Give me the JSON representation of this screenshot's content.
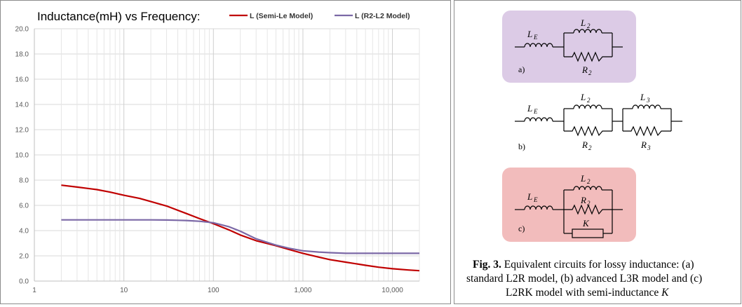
{
  "chart_data": {
    "type": "line",
    "title": "Inductance(mH) vs Frequency:",
    "xscale": "log",
    "xlim": [
      1,
      20000
    ],
    "ylim": [
      0,
      20
    ],
    "xticks": [
      1,
      10,
      100,
      1000,
      10000
    ],
    "xtick_labels": [
      "1",
      "10",
      "100",
      "1,000",
      "10,000"
    ],
    "yticks": [
      0,
      2,
      4,
      6,
      8,
      10,
      12,
      14,
      16,
      18,
      20
    ],
    "ytick_labels": [
      "0.0",
      "2.0",
      "4.0",
      "6.0",
      "8.0",
      "10.0",
      "12.0",
      "14.0",
      "16.0",
      "18.0",
      "20.0"
    ],
    "grid": true,
    "legend_position": "top-right",
    "series": [
      {
        "name": "L (Semi-Le Model)",
        "color": "#c00000",
        "x": [
          2,
          3,
          5,
          7,
          10,
          15,
          20,
          30,
          50,
          70,
          100,
          150,
          200,
          300,
          500,
          700,
          1000,
          1500,
          2000,
          3000,
          5000,
          7000,
          10000,
          15000,
          20000
        ],
        "y": [
          7.6,
          7.45,
          7.25,
          7.05,
          6.8,
          6.55,
          6.3,
          5.95,
          5.35,
          4.95,
          4.55,
          4.05,
          3.65,
          3.2,
          2.8,
          2.5,
          2.2,
          1.9,
          1.7,
          1.5,
          1.25,
          1.1,
          0.98,
          0.88,
          0.82
        ]
      },
      {
        "name": "L (R2-L2 Model)",
        "color": "#7b68a6",
        "x": [
          2,
          5,
          10,
          20,
          30,
          50,
          70,
          100,
          150,
          200,
          300,
          500,
          700,
          1000,
          1500,
          2000,
          3000,
          5000,
          10000,
          20000
        ],
        "y": [
          4.85,
          4.85,
          4.85,
          4.85,
          4.84,
          4.8,
          4.74,
          4.62,
          4.3,
          3.95,
          3.35,
          2.85,
          2.6,
          2.4,
          2.3,
          2.25,
          2.2,
          2.2,
          2.2,
          2.2
        ]
      }
    ]
  },
  "figure": {
    "circuits": [
      {
        "label": "a)",
        "inductors": [
          "L",
          "L"
        ],
        "sub": [
          "E",
          "2"
        ],
        "resistors": [
          "R",
          ""
        ],
        "rsub": [
          "2",
          ""
        ],
        "bg": "#dccbe6"
      },
      {
        "label": "b)",
        "inductors": [
          "L",
          "L",
          "L"
        ],
        "sub": [
          "E",
          "2",
          "3"
        ],
        "resistors": [
          "R",
          "R"
        ],
        "rsub": [
          "2",
          "3"
        ],
        "bg": "#ffffff"
      },
      {
        "label": "c)",
        "inductors": [
          "L",
          "L"
        ],
        "sub": [
          "E",
          "2"
        ],
        "resistors": [
          "R"
        ],
        "rsub": [
          "2"
        ],
        "extra": "K",
        "bg": "#f2bcbc"
      }
    ],
    "caption": {
      "bold": "Fig. 3.",
      "line1": " Equivalent circuits for lossy inductance: (a)",
      "line2": "standard L2R model, (b) advanced L3R model and (c)",
      "line3": "L2RK model with semi-inductance ",
      "line3_italic": "K"
    }
  }
}
